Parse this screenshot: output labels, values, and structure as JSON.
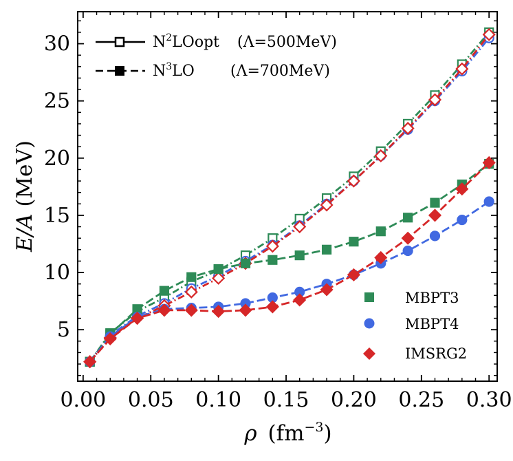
{
  "chart_data": {
    "type": "line",
    "xlabel_symbol": "ρ",
    "xlabel_unit": "(fm",
    "xlabel_exp": "−3",
    "xlabel_close": ")",
    "ylabel_symbol": "E/A",
    "ylabel_unit": "(MeV)",
    "xlim": [
      -0.004,
      0.306
    ],
    "ylim": [
      0.5,
      32.8
    ],
    "xticks": [
      0.0,
      0.05,
      0.1,
      0.15,
      0.2,
      0.25,
      0.3
    ],
    "xtick_labels": [
      "0.00",
      "0.05",
      "0.10",
      "0.15",
      "0.20",
      "0.25",
      "0.30"
    ],
    "yticks": [
      5,
      10,
      15,
      20,
      25,
      30
    ],
    "ytick_labels": [
      "5",
      "10",
      "15",
      "20",
      "25",
      "30"
    ],
    "x": [
      0.005,
      0.02,
      0.04,
      0.06,
      0.08,
      0.1,
      0.12,
      0.14,
      0.16,
      0.18,
      0.2,
      0.22,
      0.24,
      0.26,
      0.28,
      0.3
    ],
    "series": [
      {
        "name": "MBPT3",
        "interaction": "N2LOopt",
        "color": "#2e8b57",
        "marker": "square",
        "filled": false,
        "values": [
          2.2,
          4.7,
          6.6,
          7.8,
          9.2,
          10.2,
          11.5,
          13.0,
          14.7,
          16.5,
          18.4,
          20.6,
          23.0,
          25.5,
          28.2,
          31.0
        ]
      },
      {
        "name": "MBPT4",
        "interaction": "N2LOopt",
        "color": "#4169e1",
        "marker": "circle",
        "filled": false,
        "values": [
          2.2,
          4.5,
          6.2,
          7.3,
          8.6,
          9.7,
          11.0,
          12.4,
          14.1,
          16.0,
          18.0,
          20.2,
          22.5,
          25.0,
          27.6,
          30.5
        ]
      },
      {
        "name": "IMSRG2",
        "interaction": "N2LOopt",
        "color": "#d62728",
        "marker": "diamond",
        "filled": false,
        "values": [
          2.2,
          4.3,
          6.0,
          7.1,
          8.3,
          9.5,
          10.8,
          12.3,
          14.0,
          15.9,
          18.0,
          20.2,
          22.6,
          25.1,
          27.8,
          30.8
        ]
      },
      {
        "name": "MBPT3",
        "interaction": "N3LO",
        "color": "#2e8b57",
        "marker": "square",
        "filled": true,
        "values": [
          2.2,
          4.6,
          6.8,
          8.4,
          9.6,
          10.3,
          10.8,
          11.1,
          11.5,
          12.0,
          12.7,
          13.6,
          14.8,
          16.1,
          17.7,
          19.5
        ]
      },
      {
        "name": "MBPT4",
        "interaction": "N3LO",
        "color": "#4169e1",
        "marker": "circle",
        "filled": true,
        "values": [
          2.2,
          4.4,
          6.1,
          6.8,
          6.9,
          7.0,
          7.3,
          7.8,
          8.3,
          9.0,
          9.8,
          10.8,
          11.9,
          13.2,
          14.6,
          16.2
        ]
      },
      {
        "name": "IMSRG2",
        "interaction": "N3LO",
        "color": "#d62728",
        "marker": "diamond",
        "filled": true,
        "values": [
          2.2,
          4.2,
          6.0,
          6.7,
          6.7,
          6.6,
          6.7,
          7.0,
          7.6,
          8.5,
          9.8,
          11.3,
          13.0,
          15.0,
          17.3,
          19.6
        ]
      }
    ],
    "legend_interaction": [
      {
        "label_pre": "N",
        "label_sup": "2",
        "label_post": "LOopt",
        "cutoff": "(Λ=500MeV)",
        "linestyle": "solid",
        "marker": "square",
        "filled": false
      },
      {
        "label_pre": "N",
        "label_sup": "3",
        "label_post": "LO",
        "cutoff": "(Λ=700MeV)",
        "linestyle": "dashed",
        "marker": "square",
        "filled": true
      }
    ],
    "legend_method": [
      {
        "label": "MBPT3",
        "color": "#2e8b57",
        "marker": "square"
      },
      {
        "label": "MBPT4",
        "color": "#4169e1",
        "marker": "circle"
      },
      {
        "label": "IMSRG2",
        "color": "#d62728",
        "marker": "diamond"
      }
    ]
  }
}
